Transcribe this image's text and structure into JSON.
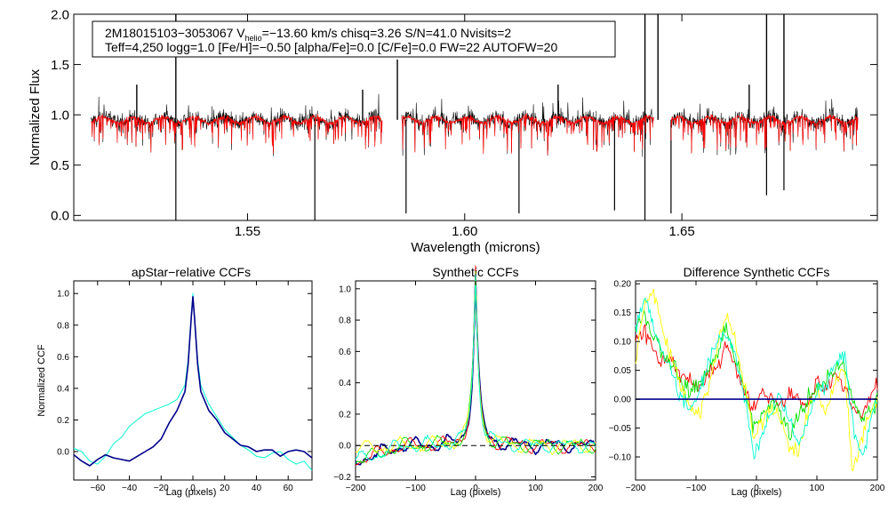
{
  "chart_data": [
    {
      "type": "line",
      "id": "spectrum",
      "ylabel": "Normalized Flux",
      "xlabel": "Wavelength (microns)",
      "xlim": [
        1.51,
        1.695
      ],
      "ylim": [
        -0.05,
        2.0
      ],
      "xticks": [
        1.55,
        1.6,
        1.65
      ],
      "xtick_labels": [
        "1.55",
        "1.60",
        "1.65"
      ],
      "yticks": [
        0.0,
        0.5,
        1.0,
        1.5,
        2.0
      ],
      "ytick_labels": [
        "0.0",
        "0.5",
        "1.0",
        "1.5",
        "2.0"
      ],
      "annotation_line1_prefix": "2M18015103−3053067  V",
      "annotation_line1_sub": "helio",
      "annotation_line1_suffix": "=−13.60 km/s  chisq=3.26  S/N=41.0  Nvisits=2",
      "annotation_line2": "Teff=4,250 logg=1.0 [Fe/H]=−0.50 [alpha/Fe]=0.0 [C/Fe]=0.0 FW=22 AUTOFW=20",
      "chips": [
        [
          1.514,
          1.581
        ],
        [
          1.5855,
          1.6435
        ],
        [
          1.6475,
          1.6905
        ]
      ],
      "continuum": 0.95,
      "series": [
        {
          "name": "observed",
          "color": "#000000"
        },
        {
          "name": "model",
          "color": "#ff0000"
        }
      ],
      "absorption_lines": [
        {
          "x": 1.5335,
          "min": -0.05
        },
        {
          "x": 1.5655,
          "min": -0.05
        },
        {
          "x": 1.5865,
          "min": 0.02
        },
        {
          "x": 1.6125,
          "min": 0.02
        },
        {
          "x": 1.6345,
          "min": 0.05
        },
        {
          "x": 1.6415,
          "min": -0.05
        },
        {
          "x": 1.6475,
          "min": 0.02
        },
        {
          "x": 1.6695,
          "min": 0.2
        },
        {
          "x": 1.6735,
          "min": 0.25
        }
      ],
      "emission_spikes": [
        {
          "x": 1.5335,
          "max": 2.0
        },
        {
          "x": 1.6415,
          "max": 2.0
        },
        {
          "x": 1.6445,
          "max": 2.0
        },
        {
          "x": 1.6695,
          "max": 2.0
        },
        {
          "x": 1.6735,
          "max": 2.0
        },
        {
          "x": 1.5845,
          "max": 1.55
        },
        {
          "x": 1.5245,
          "max": 1.3
        },
        {
          "x": 1.5765,
          "max": 1.25
        },
        {
          "x": 1.6655,
          "max": 1.3
        },
        {
          "x": 1.6215,
          "max": 1.3
        }
      ]
    },
    {
      "type": "line",
      "id": "apstar-ccf",
      "title": "apStar−relative CCFs",
      "xlabel": "Lag (pixels)",
      "ylabel": "Normalized CCF",
      "xlim": [
        -75,
        75
      ],
      "ylim": [
        -0.18,
        1.08
      ],
      "xticks": [
        -60,
        -40,
        -20,
        0,
        20,
        40,
        60
      ],
      "xtick_labels": [
        "−60",
        "−40",
        "−20",
        "0",
        "20",
        "40",
        "60"
      ],
      "yticks": [
        0.0,
        0.2,
        0.4,
        0.6,
        0.8,
        1.0
      ],
      "ytick_labels": [
        "0.0",
        "0.2",
        "0.4",
        "0.6",
        "0.8",
        "1.0"
      ],
      "series": [
        {
          "name": "combined",
          "color": "#00008b",
          "x": [
            -75,
            -70,
            -65,
            -60,
            -55,
            -50,
            -45,
            -40,
            -35,
            -30,
            -25,
            -20,
            -15,
            -10,
            -5,
            -3,
            -1,
            0,
            1,
            3,
            5,
            10,
            15,
            20,
            25,
            30,
            35,
            40,
            45,
            50,
            55,
            60,
            65,
            70,
            75
          ],
          "y": [
            -0.02,
            -0.06,
            -0.09,
            -0.05,
            -0.02,
            -0.04,
            -0.05,
            -0.06,
            -0.03,
            0.0,
            0.03,
            0.08,
            0.18,
            0.26,
            0.38,
            0.55,
            0.85,
            0.98,
            0.85,
            0.55,
            0.38,
            0.26,
            0.2,
            0.12,
            0.08,
            0.04,
            0.03,
            0.0,
            0.01,
            0.01,
            -0.03,
            0.0,
            0.01,
            0.0,
            -0.04
          ]
        },
        {
          "name": "visit-1",
          "color": "#00ffd0",
          "x": [
            -75,
            -70,
            -65,
            -60,
            -55,
            -50,
            -45,
            -40,
            -35,
            -30,
            -25,
            -20,
            -15,
            -10,
            -5,
            -3,
            -1,
            0,
            1,
            3,
            5,
            10,
            15,
            20,
            25,
            30,
            35,
            40,
            45,
            50,
            55,
            60,
            65,
            70,
            75
          ],
          "y": [
            0.02,
            0.0,
            -0.06,
            -0.08,
            -0.03,
            0.05,
            0.09,
            0.16,
            0.2,
            0.24,
            0.26,
            0.28,
            0.3,
            0.33,
            0.42,
            0.58,
            0.86,
            1.0,
            0.86,
            0.58,
            0.42,
            0.3,
            0.22,
            0.14,
            0.09,
            0.04,
            0.01,
            -0.03,
            -0.04,
            -0.01,
            0.0,
            -0.05,
            -0.08,
            -0.06,
            -0.12
          ]
        }
      ]
    },
    {
      "type": "line",
      "id": "synthetic-ccf",
      "title": "Synthetic CCFs",
      "xlabel": "Lag (pixels)",
      "xlim": [
        -200,
        200
      ],
      "ylim": [
        -0.22,
        1.05
      ],
      "xticks": [
        -200,
        -100,
        0,
        100,
        200
      ],
      "xtick_labels": [
        "−200",
        "−100",
        "0",
        "100",
        "200"
      ],
      "yticks": [
        -0.2,
        0.0,
        0.2,
        0.4,
        0.6,
        0.8,
        1.0
      ],
      "ytick_labels": [
        "−0.2",
        "0.0",
        "0.2",
        "0.4",
        "0.6",
        "0.8",
        "1.0"
      ],
      "reference_line": 0.0,
      "series": [
        {
          "name": "combined",
          "color": "#00008b"
        },
        {
          "name": "visit-1",
          "color": "#ff0000"
        },
        {
          "name": "visit-2",
          "color": "#00e000"
        },
        {
          "name": "visit-3",
          "color": "#ffff00"
        },
        {
          "name": "visit-4",
          "color": "#00ffd0"
        }
      ]
    },
    {
      "type": "line",
      "id": "difference-ccf",
      "title": "Difference Synthetic CCFs",
      "xlabel": "Lag (pixels)",
      "xlim": [
        -200,
        200
      ],
      "ylim": [
        -0.14,
        0.205
      ],
      "xticks": [
        -200,
        -100,
        0,
        100,
        200
      ],
      "xtick_labels": [
        "−200",
        "−100",
        "0",
        "100",
        "200"
      ],
      "yticks": [
        -0.1,
        -0.05,
        0.0,
        0.05,
        0.1,
        0.15,
        0.2
      ],
      "ytick_labels": [
        "−0.10",
        "−0.05",
        "0.00",
        "0.05",
        "0.10",
        "0.15",
        "0.20"
      ],
      "reference_line": 0.0,
      "series": [
        {
          "name": "visit-1",
          "color": "#ff0000",
          "x": [
            -200,
            -185,
            -170,
            -155,
            -140,
            -125,
            -110,
            -95,
            -80,
            -65,
            -50,
            -35,
            -20,
            -5,
            10,
            25,
            40,
            55,
            70,
            85,
            100,
            115,
            130,
            145,
            160,
            175,
            190,
            200
          ],
          "y": [
            0.1,
            0.12,
            0.08,
            0.06,
            0.07,
            0.04,
            0.03,
            0.02,
            0.04,
            0.06,
            0.1,
            0.05,
            0.01,
            -0.02,
            0.01,
            0.0,
            -0.01,
            0.01,
            0.0,
            -0.01,
            0.03,
            0.02,
            0.04,
            0.02,
            -0.01,
            -0.03,
            0.01,
            0.02
          ]
        },
        {
          "name": "visit-2",
          "color": "#00e000",
          "x": [
            -200,
            -185,
            -170,
            -155,
            -140,
            -125,
            -110,
            -95,
            -80,
            -65,
            -50,
            -35,
            -20,
            -5,
            10,
            25,
            40,
            55,
            70,
            85,
            100,
            115,
            130,
            145,
            160,
            175,
            190,
            200
          ],
          "y": [
            0.13,
            0.15,
            0.11,
            0.08,
            0.06,
            0.03,
            0.01,
            0.03,
            0.05,
            0.08,
            0.13,
            0.07,
            0.02,
            -0.05,
            -0.03,
            0.0,
            -0.02,
            -0.06,
            -0.03,
            0.0,
            0.02,
            0.03,
            0.05,
            0.06,
            0.0,
            -0.04,
            -0.02,
            0.0
          ]
        },
        {
          "name": "visit-3",
          "color": "#ffff00",
          "x": [
            -200,
            -185,
            -170,
            -155,
            -140,
            -125,
            -110,
            -95,
            -80,
            -65,
            -50,
            -35,
            -20,
            -5,
            10,
            25,
            40,
            55,
            70,
            85,
            100,
            115,
            130,
            145,
            160,
            175,
            190,
            200
          ],
          "y": [
            0.06,
            0.17,
            0.19,
            0.12,
            0.07,
            0.02,
            -0.01,
            -0.03,
            0.02,
            0.09,
            0.15,
            0.1,
            0.03,
            -0.07,
            -0.04,
            -0.01,
            -0.03,
            -0.08,
            -0.09,
            -0.02,
            0.01,
            -0.03,
            0.03,
            0.05,
            -0.13,
            -0.06,
            -0.02,
            0.0
          ]
        },
        {
          "name": "visit-4",
          "color": "#00ffd0",
          "x": [
            -200,
            -185,
            -170,
            -155,
            -140,
            -125,
            -110,
            -95,
            -80,
            -65,
            -50,
            -35,
            -20,
            -5,
            10,
            25,
            40,
            55,
            70,
            85,
            100,
            115,
            130,
            145,
            160,
            175,
            190,
            200
          ],
          "y": [
            0.12,
            0.18,
            0.12,
            0.08,
            0.05,
            0.0,
            -0.02,
            0.01,
            0.06,
            0.1,
            0.12,
            0.07,
            0.01,
            -0.1,
            -0.06,
            -0.02,
            0.0,
            -0.04,
            -0.08,
            -0.03,
            0.01,
            0.02,
            0.06,
            0.08,
            -0.05,
            -0.1,
            -0.03,
            0.0
          ]
        },
        {
          "name": "combined",
          "color": "#00008b",
          "x": [
            -200,
            200
          ],
          "y": [
            0.0,
            0.0
          ]
        }
      ]
    }
  ]
}
